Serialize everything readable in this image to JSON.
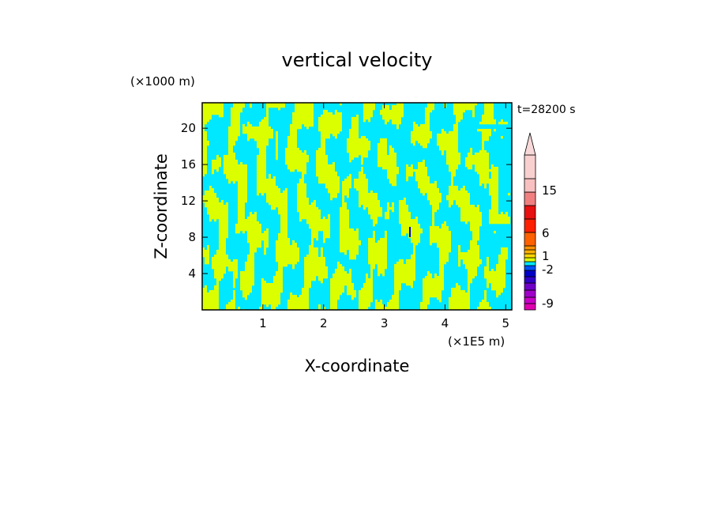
{
  "chart_data": {
    "type": "heatmap",
    "title": "vertical velocity",
    "xlabel": "X-coordinate",
    "ylabel": "Z-coordinate",
    "x_unit": "(×1E5 m)",
    "y_unit": "(×1000 m)",
    "time_label": "t=28200 s",
    "xlim": [
      0,
      5.1
    ],
    "ylim": [
      0,
      22.8
    ],
    "x_ticks": [
      1,
      2,
      3,
      4,
      5
    ],
    "y_ticks": [
      4,
      8,
      12,
      16,
      20
    ],
    "dominant_fields": [
      {
        "name": "weak upward (0 to 1)",
        "color": "#dcff00"
      },
      {
        "name": "weak downward (-1 to 0)",
        "color": "#00e8ff"
      }
    ],
    "colorbar": {
      "levels": [
        "-9",
        "-2",
        "1",
        "6",
        "15"
      ],
      "segments": [
        {
          "color": "#e000b0"
        },
        {
          "color": "#c800c8"
        },
        {
          "color": "#a000c8"
        },
        {
          "color": "#7000c8"
        },
        {
          "color": "#3000c8"
        },
        {
          "color": "#0000c8"
        },
        {
          "color": "#0050ff"
        },
        {
          "color": "#00e8ff"
        },
        {
          "color": "#dcff00"
        },
        {
          "color": "#ffd700"
        },
        {
          "color": "#ffb000"
        },
        {
          "color": "#ff9000"
        },
        {
          "color": "#ff6000"
        },
        {
          "color": "#ff2000"
        },
        {
          "color": "#e81010"
        },
        {
          "color": "#f08080"
        },
        {
          "color": "#f8c0c0"
        },
        {
          "color": "#f8d0d0"
        }
      ],
      "extend_max_color": "#f8d8d8"
    }
  }
}
